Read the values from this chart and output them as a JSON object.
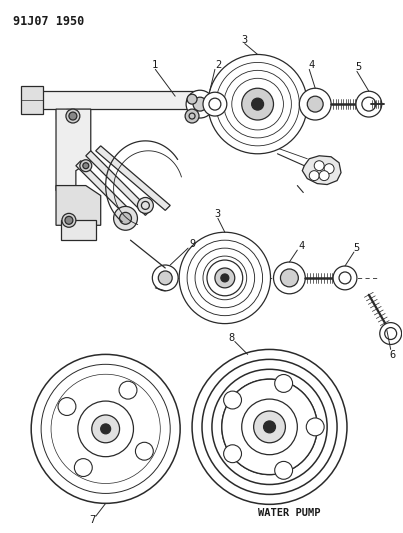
{
  "title_code": "91J07 1950",
  "background_color": "#ffffff",
  "line_color": "#2a2a2a",
  "text_color": "#1a1a1a",
  "water_pump_label": "WATER PUMP",
  "figsize": [
    4.03,
    5.33
  ],
  "dpi": 100
}
